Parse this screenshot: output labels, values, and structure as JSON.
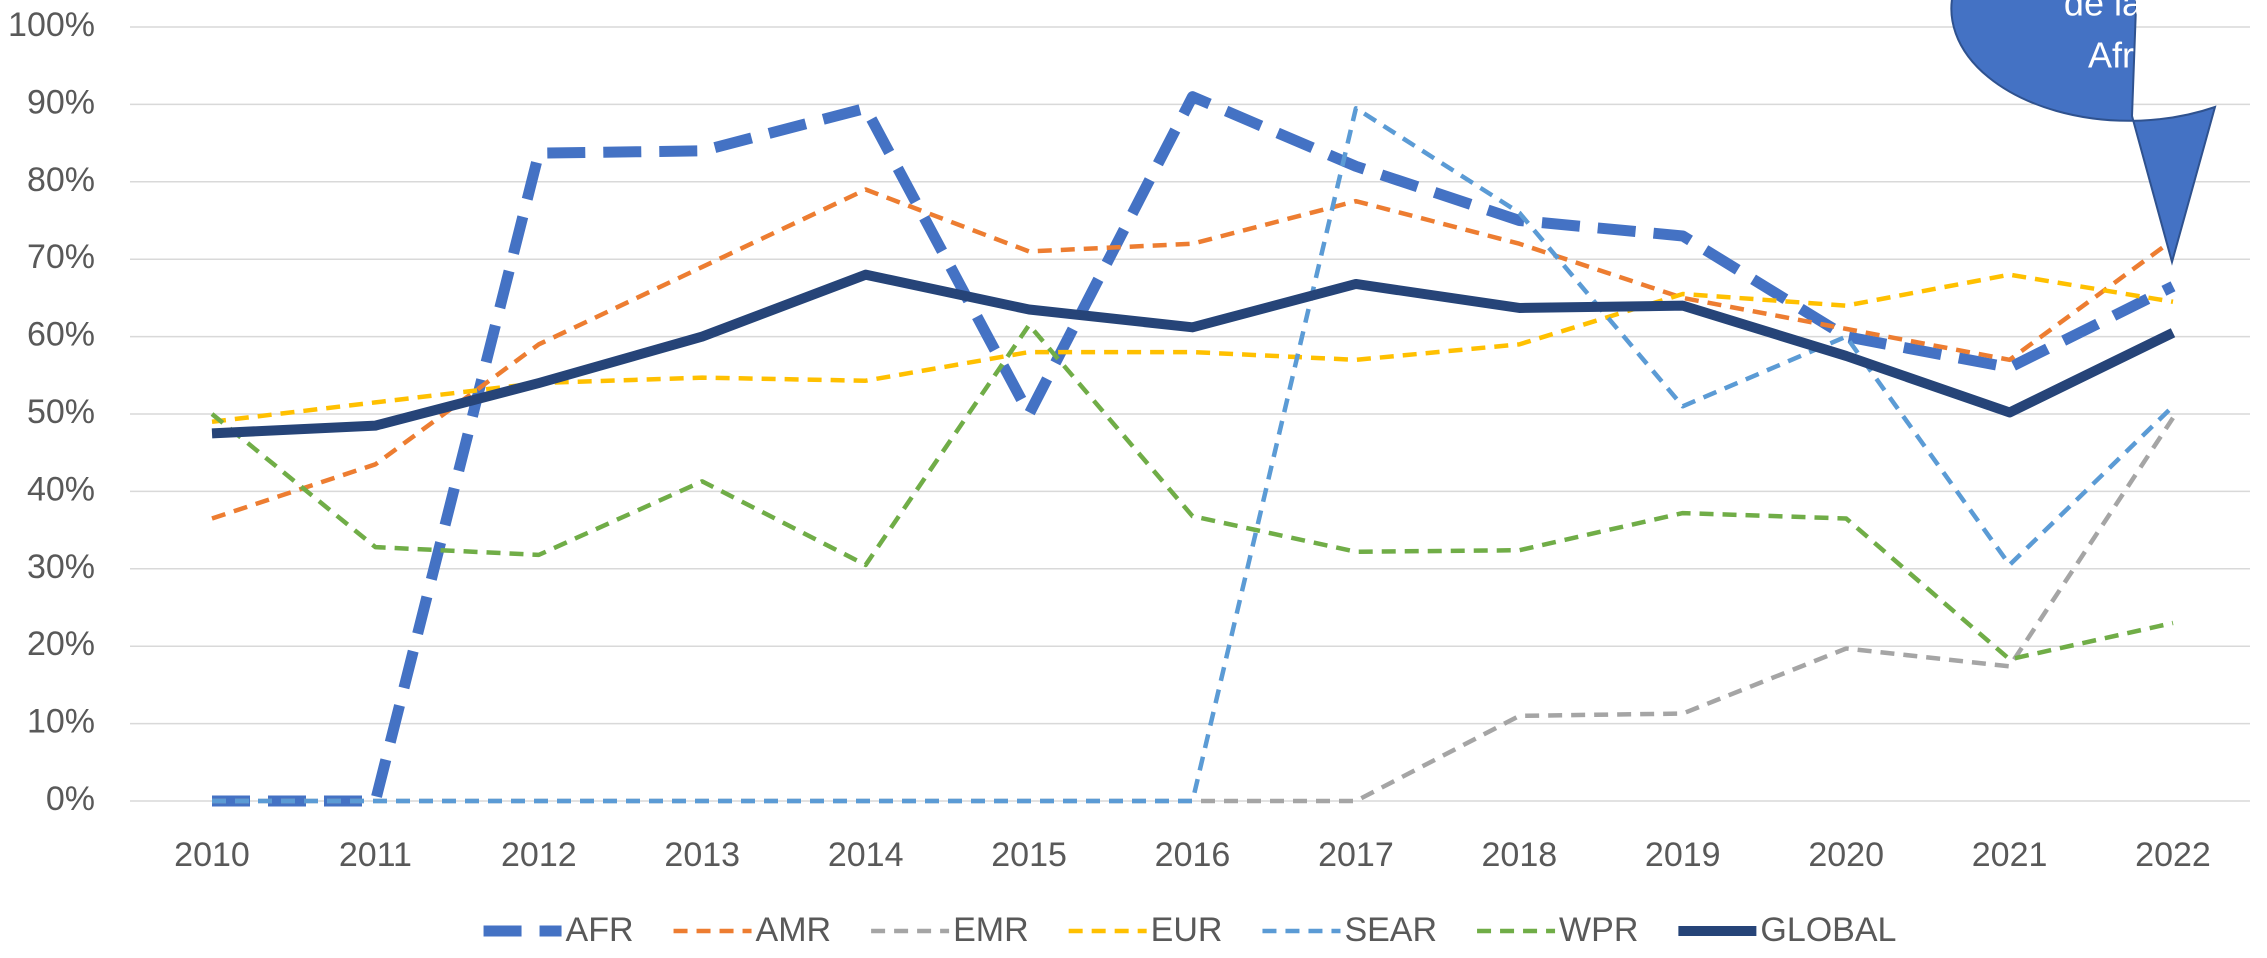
{
  "chart_data": {
    "type": "line",
    "annotation": [
      "de la région",
      "Africaine"
    ],
    "categories": [
      "2010",
      "2011",
      "2012",
      "2013",
      "2014",
      "2015",
      "2016",
      "2017",
      "2018",
      "2019",
      "2020",
      "2021",
      "2022"
    ],
    "ylim": [
      0,
      100
    ],
    "yticks": [
      {
        "value": 0,
        "label": "0%"
      },
      {
        "value": 10,
        "label": "10%"
      },
      {
        "value": 20,
        "label": "20%"
      },
      {
        "value": 30,
        "label": "30%"
      },
      {
        "value": 40,
        "label": "40%"
      },
      {
        "value": 50,
        "label": "50%"
      },
      {
        "value": 60,
        "label": "60%"
      },
      {
        "value": 70,
        "label": "70%"
      },
      {
        "value": 80,
        "label": "80%"
      },
      {
        "value": 90,
        "label": "90%"
      },
      {
        "value": 100,
        "label": "100%"
      }
    ],
    "grid": true,
    "legend": "bottom",
    "series": [
      {
        "name": "AFR",
        "color": "#4472c4",
        "values": [
          0,
          0,
          83.7,
          84,
          89.5,
          50,
          91,
          82,
          75,
          73,
          60,
          56,
          66.5
        ]
      },
      {
        "name": "AMR",
        "color": "#ed7d31",
        "values": [
          36.5,
          43.5,
          59,
          69,
          79,
          71,
          72,
          77.5,
          72,
          65,
          61,
          57,
          72.5
        ]
      },
      {
        "name": "EMR",
        "color": "#a5a5a5",
        "values": [
          0,
          0,
          0,
          0,
          0,
          0,
          0,
          0,
          11,
          11.3,
          19.7,
          17.4,
          49.5
        ]
      },
      {
        "name": "EUR",
        "color": "#ffc000",
        "values": [
          49,
          51.5,
          54,
          54.7,
          54.3,
          58,
          58,
          57,
          59,
          65.5,
          64,
          68,
          64.5
        ]
      },
      {
        "name": "SEAR",
        "color": "#5b9bd5",
        "values": [
          0,
          0,
          0,
          0,
          0,
          0,
          0,
          89.5,
          76,
          51,
          60,
          30.5,
          51
        ]
      },
      {
        "name": "WPR",
        "color": "#70ad47",
        "values": [
          50,
          32.8,
          31.8,
          41.3,
          30.5,
          61.5,
          36.8,
          32.2,
          32.4,
          37.2,
          36.5,
          18.3,
          23
        ]
      },
      {
        "name": "GLOBAL",
        "color": "#264478",
        "values": [
          47.5,
          48.5,
          54,
          60,
          68,
          63.5,
          61.2,
          66.8,
          63.7,
          64,
          57.5,
          50.2,
          60.5
        ]
      }
    ]
  }
}
